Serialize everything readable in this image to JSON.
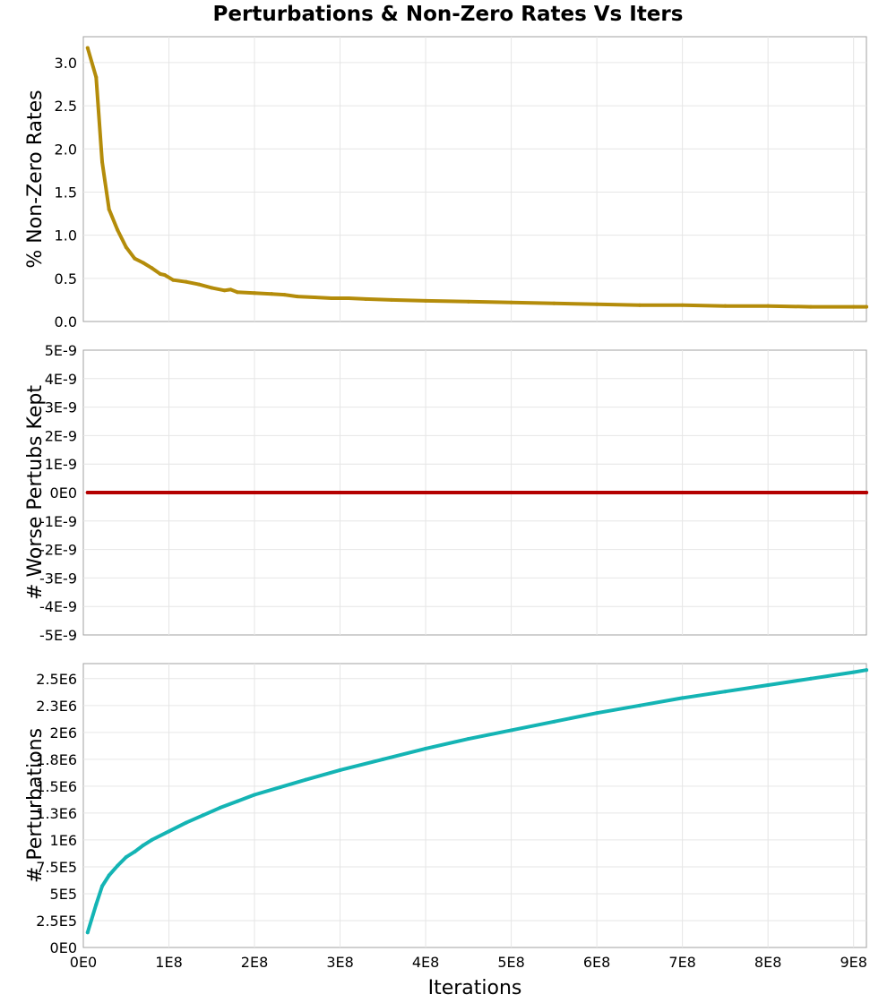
{
  "chart_data": {
    "title": "Perturbations & Non-Zero Rates Vs Iters",
    "xlabel": "Iterations",
    "x_ticks": [
      "0E0",
      "1E8",
      "2E8",
      "3E8",
      "4E8",
      "5E8",
      "6E8",
      "7E8",
      "8E8",
      "9E8"
    ],
    "x_tick_values": [
      0,
      100000000,
      200000000,
      300000000,
      400000000,
      500000000,
      600000000,
      700000000,
      800000000,
      900000000
    ],
    "xlim": [
      0,
      915000000
    ],
    "grid": true,
    "panels": [
      {
        "type": "line",
        "ylabel": "% Non-Zero Rates",
        "ylim": [
          0,
          3.3
        ],
        "y_ticks": [
          "0.0",
          "0.5",
          "1.0",
          "1.5",
          "2.0",
          "2.5",
          "3.0"
        ],
        "y_tick_values": [
          0,
          0.5,
          1.0,
          1.5,
          2.0,
          2.5,
          3.0
        ],
        "series": [
          {
            "name": "% Non-Zero Rates",
            "color": "#b48c0a",
            "x": [
              5000000,
              15000000,
              22000000,
              30000000,
              40000000,
              50000000,
              60000000,
              70000000,
              80000000,
              90000000,
              95000000,
              105000000,
              120000000,
              135000000,
              150000000,
              165000000,
              172000000,
              180000000,
              200000000,
              220000000,
              235000000,
              250000000,
              270000000,
              290000000,
              310000000,
              330000000,
              360000000,
              400000000,
              450000000,
              500000000,
              550000000,
              600000000,
              650000000,
              700000000,
              750000000,
              800000000,
              850000000,
              900000000,
              915000000
            ],
            "y": [
              3.17,
              2.83,
              1.85,
              1.3,
              1.06,
              0.86,
              0.73,
              0.68,
              0.62,
              0.55,
              0.54,
              0.48,
              0.46,
              0.43,
              0.39,
              0.36,
              0.37,
              0.34,
              0.33,
              0.32,
              0.31,
              0.29,
              0.28,
              0.27,
              0.27,
              0.26,
              0.25,
              0.24,
              0.23,
              0.22,
              0.21,
              0.2,
              0.19,
              0.19,
              0.18,
              0.18,
              0.17,
              0.17,
              0.17
            ]
          }
        ]
      },
      {
        "type": "line",
        "ylabel": "# Worse Pertubs Kept",
        "ylim": [
          -5e-09,
          5e-09
        ],
        "y_ticks": [
          "5E-9",
          "4E-9",
          "3E-9",
          "2E-9",
          "1E-9",
          "0E0",
          "-1E-9",
          "-2E-9",
          "-3E-9",
          "-4E-9",
          "-5E-9"
        ],
        "y_tick_values": [
          5e-09,
          4e-09,
          3e-09,
          2e-09,
          1e-09,
          0,
          -1e-09,
          -2e-09,
          -3e-09,
          -4e-09,
          -5e-09
        ],
        "series": [
          {
            "name": "# Worse Pertubs Kept",
            "color": "#b40000",
            "x": [
              5000000,
              915000000
            ],
            "y": [
              0,
              0
            ]
          }
        ]
      },
      {
        "type": "line",
        "ylabel": "# Perturbations",
        "ylim": [
          0,
          2640000
        ],
        "y_ticks": [
          "0E0",
          "2.5E5",
          "5E5",
          "7.5E5",
          "1E6",
          "1.3E6",
          "1.5E6",
          "1.8E6",
          "2E6",
          "2.3E6",
          "2.5E6"
        ],
        "y_tick_values": [
          0,
          250000,
          500000,
          750000,
          1000000,
          1250000,
          1500000,
          1750000,
          2000000,
          2250000,
          2500000
        ],
        "series": [
          {
            "name": "# Perturbations",
            "color": "#14b4b4",
            "x": [
              5000000,
              15000000,
              22000000,
              30000000,
              40000000,
              50000000,
              60000000,
              70000000,
              80000000,
              100000000,
              120000000,
              140000000,
              160000000,
              180000000,
              200000000,
              230000000,
              260000000,
              300000000,
              350000000,
              400000000,
              450000000,
              500000000,
              550000000,
              600000000,
              650000000,
              700000000,
              750000000,
              800000000,
              850000000,
              900000000,
              915000000
            ],
            "y": [
              140000,
              400000,
              570000,
              670000,
              760000,
              840000,
              890000,
              950000,
              1000000,
              1080000,
              1160000,
              1230000,
              1300000,
              1360000,
              1420000,
              1490000,
              1560000,
              1650000,
              1750000,
              1850000,
              1940000,
              2020000,
              2100000,
              2180000,
              2250000,
              2320000,
              2380000,
              2440000,
              2500000,
              2560000,
              2580000
            ]
          }
        ]
      }
    ]
  }
}
